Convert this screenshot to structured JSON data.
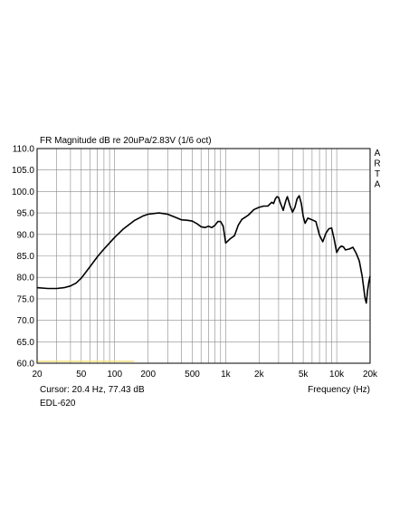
{
  "chart_data": {
    "type": "line",
    "title": "FR Magnitude dB re 20uPa/2.83V (1/6 oct)",
    "watermark": "ARTA",
    "xlabel": "Frequency (Hz)",
    "ylabel": "",
    "x_scale": "log",
    "xlim": [
      20,
      20000
    ],
    "ylim": [
      60,
      110
    ],
    "grid": true,
    "x_ticks": [
      {
        "value": 20,
        "label": "20"
      },
      {
        "value": 50,
        "label": "50"
      },
      {
        "value": 100,
        "label": "100"
      },
      {
        "value": 200,
        "label": "200"
      },
      {
        "value": 500,
        "label": "500"
      },
      {
        "value": 1000,
        "label": "1k"
      },
      {
        "value": 2000,
        "label": "2k"
      },
      {
        "value": 5000,
        "label": "5k"
      },
      {
        "value": 10000,
        "label": "10k"
      },
      {
        "value": 20000,
        "label": "20k"
      }
    ],
    "y_ticks": [
      {
        "value": 110,
        "label": "110.0"
      },
      {
        "value": 105,
        "label": "105.0"
      },
      {
        "value": 100,
        "label": "100.0"
      },
      {
        "value": 95,
        "label": "95.0"
      },
      {
        "value": 90,
        "label": "90.0"
      },
      {
        "value": 85,
        "label": "85.0"
      },
      {
        "value": 80,
        "label": "80.0"
      },
      {
        "value": 75,
        "label": "75.0"
      },
      {
        "value": 70,
        "label": "70.0"
      },
      {
        "value": 65,
        "label": "65.0"
      },
      {
        "value": 60,
        "label": "60.0"
      }
    ],
    "cursor_text": "Cursor: 20.4 Hz, 77.43 dB",
    "footer_label": "EDL-620",
    "series": [
      {
        "color": "#000000",
        "x": [
          20,
          25,
          30,
          35,
          40,
          45,
          50,
          60,
          70,
          80,
          100,
          120,
          150,
          180,
          200,
          250,
          300,
          350,
          400,
          450,
          500,
          550,
          600,
          650,
          700,
          750,
          800,
          850,
          900,
          950,
          1000,
          1100,
          1200,
          1300,
          1400,
          1500,
          1600,
          1800,
          2000,
          2200,
          2400,
          2600,
          2700,
          2800,
          2900,
          3000,
          3100,
          3200,
          3300,
          3400,
          3500,
          3600,
          3800,
          4000,
          4200,
          4400,
          4600,
          4800,
          5000,
          5200,
          5500,
          6000,
          6500,
          7000,
          7500,
          8000,
          8500,
          9000,
          9500,
          10000,
          10500,
          11000,
          11500,
          12000,
          13000,
          14000,
          15000,
          16000,
          17000,
          18000,
          18500,
          19000,
          19500,
          20000
        ],
        "y": [
          77.6,
          77.4,
          77.4,
          77.6,
          78.0,
          78.7,
          79.8,
          82.5,
          84.8,
          86.6,
          89.3,
          91.3,
          93.2,
          94.3,
          94.7,
          95.0,
          94.7,
          94.0,
          93.4,
          93.3,
          93.1,
          92.5,
          91.8,
          91.6,
          91.9,
          91.6,
          92.1,
          93.0,
          93.0,
          91.9,
          88.0,
          89.0,
          89.7,
          92.2,
          93.5,
          94.0,
          94.5,
          95.8,
          96.3,
          96.6,
          96.6,
          97.5,
          97.2,
          98.3,
          98.8,
          98.6,
          97.4,
          96.5,
          95.6,
          96.9,
          98.0,
          98.8,
          96.7,
          95.2,
          96.3,
          98.3,
          99.0,
          97.2,
          94.2,
          92.6,
          93.8,
          93.4,
          93.0,
          89.8,
          88.3,
          90.3,
          91.3,
          91.5,
          88.9,
          85.8,
          86.8,
          87.3,
          87.1,
          86.4,
          86.6,
          87.0,
          85.6,
          83.8,
          80.2,
          75.2,
          74.0,
          77.0,
          79.0,
          80.3
        ]
      }
    ]
  }
}
